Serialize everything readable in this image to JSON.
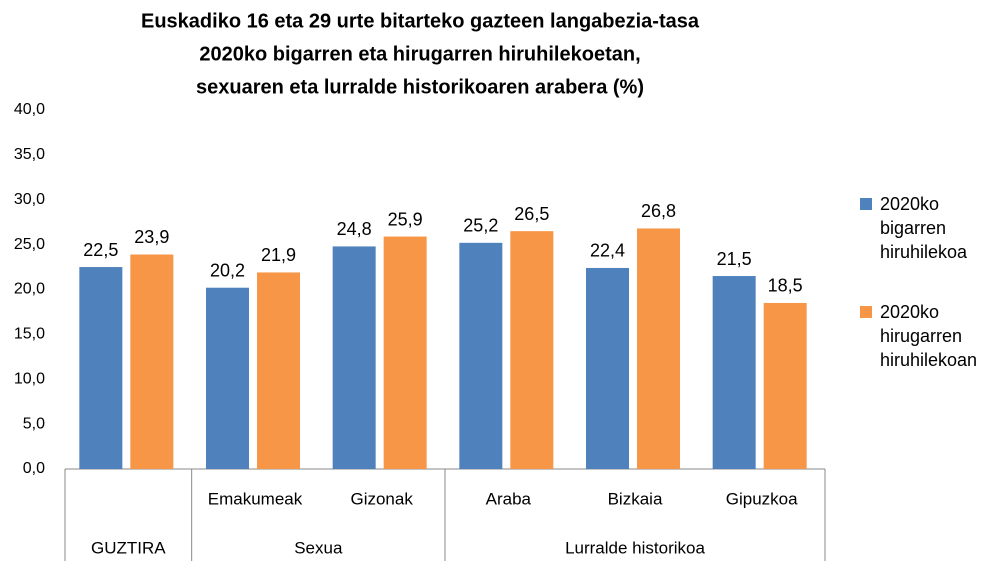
{
  "chart_data": {
    "type": "bar",
    "title": [
      "Euskadiko 16 eta 29 urte bitarteko gazteen langabezia-tasa",
      "2020ko bigarren eta hirugarren hiruhilekoetan,",
      "sexuaren eta lurralde historikoaren arabera (%)"
    ],
    "categories": [
      null,
      "Emakumeak",
      "Gizonak",
      "Araba",
      "Bizkaia",
      "Gipuzkoa"
    ],
    "groups": [
      {
        "label": "GUZTIRA",
        "span": 1
      },
      {
        "label": "Sexua",
        "span": 2
      },
      {
        "label": "Lurralde historikoa",
        "span": 3
      }
    ],
    "series": [
      {
        "name": "2020ko bigarren hiruhilekoa",
        "color": "#4f81bd",
        "values": [
          22.5,
          20.2,
          24.8,
          25.2,
          22.4,
          21.5
        ],
        "value_labels": [
          "22,5",
          "20,2",
          "24,8",
          "25,2",
          "22,4",
          "21,5"
        ]
      },
      {
        "name": "2020ko hirugarren hiruhilekoan",
        "color": "#f79646",
        "values": [
          23.9,
          21.9,
          25.9,
          26.5,
          26.8,
          18.5
        ],
        "value_labels": [
          "23,9",
          "21,9",
          "25,9",
          "26,5",
          "26,8",
          "18,5"
        ]
      }
    ],
    "ylim": [
      0,
      40
    ],
    "yticks": [
      {
        "value": 0,
        "label": "0,0"
      },
      {
        "value": 5,
        "label": "5,0"
      },
      {
        "value": 10,
        "label": "10,0"
      },
      {
        "value": 15,
        "label": "15,0"
      },
      {
        "value": 20,
        "label": "20,0"
      },
      {
        "value": 25,
        "label": "25,0"
      },
      {
        "value": 30,
        "label": "30,0"
      },
      {
        "value": 35,
        "label": "35,0"
      },
      {
        "value": 40,
        "label": "40,0"
      }
    ],
    "legend": "right"
  }
}
